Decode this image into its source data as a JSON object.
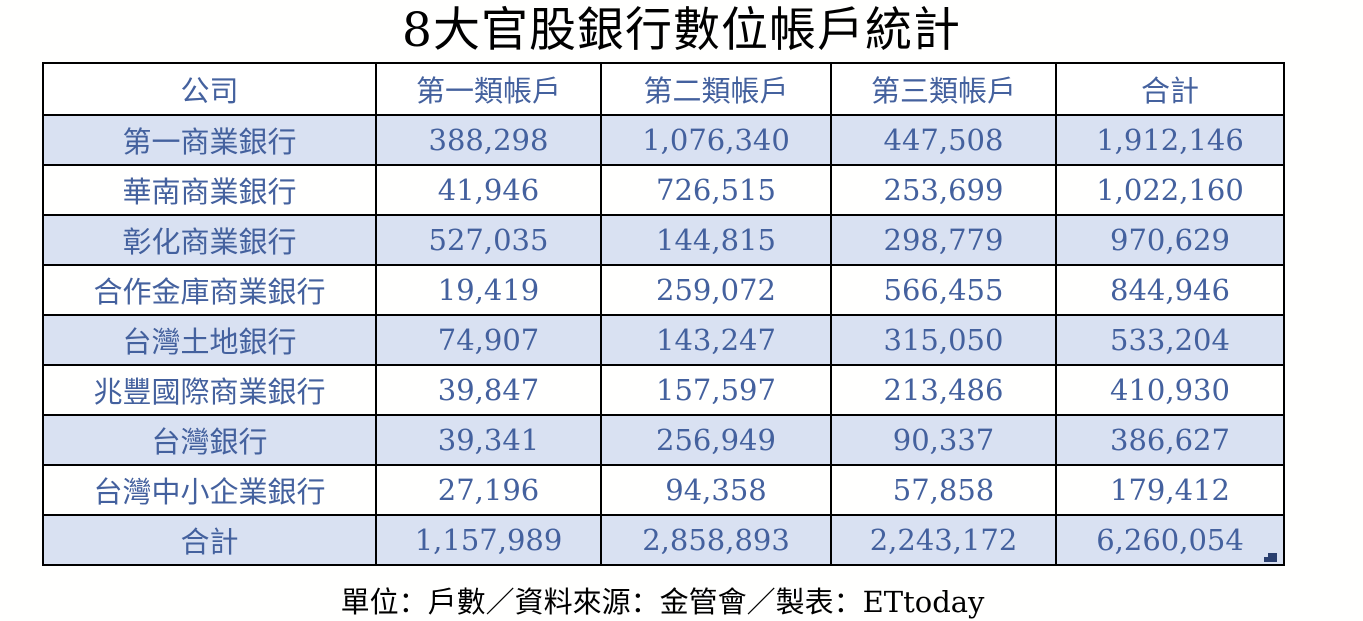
{
  "title": "8大官股銀行數位帳戶統計",
  "footer_note": "單位：戶數／資料來源：金管會／製表：ETtoday",
  "colors": {
    "table_text": "#44619e",
    "band_row_bg": "#d9e1f2",
    "plain_row_bg": "#fffffe",
    "grid_border": "#000000",
    "corner_handle": "#2a3f6f",
    "title_text": "#000000"
  },
  "table": {
    "columns": [
      "公司",
      "第一類帳戶",
      "第二類帳戶",
      "第三類帳戶",
      "合計"
    ],
    "rows": [
      {
        "cells": [
          "第一商業銀行",
          "388,298",
          "1,076,340",
          "447,508",
          "1,912,146"
        ]
      },
      {
        "cells": [
          "華南商業銀行",
          "41,946",
          "726,515",
          "253,699",
          "1,022,160"
        ]
      },
      {
        "cells": [
          "彰化商業銀行",
          "527,035",
          "144,815",
          "298,779",
          "970,629"
        ]
      },
      {
        "cells": [
          "合作金庫商業銀行",
          "19,419",
          "259,072",
          "566,455",
          "844,946"
        ]
      },
      {
        "cells": [
          "台灣土地銀行",
          "74,907",
          "143,247",
          "315,050",
          "533,204"
        ]
      },
      {
        "cells": [
          "兆豐國際商業銀行",
          "39,847",
          "157,597",
          "213,486",
          "410,930"
        ]
      },
      {
        "cells": [
          "台灣銀行",
          "39,341",
          "256,949",
          "90,337",
          "386,627"
        ]
      },
      {
        "cells": [
          "台灣中小企業銀行",
          "27,196",
          "94,358",
          "57,858",
          "179,412"
        ]
      },
      {
        "cells": [
          "合計",
          "1,157,989",
          "2,858,893",
          "2,243,172",
          "6,260,054"
        ]
      }
    ]
  },
  "chart_data": {
    "type": "table",
    "title": "8大官股銀行數位帳戶統計",
    "columns": [
      "公司",
      "第一類帳戶",
      "第二類帳戶",
      "第三類帳戶",
      "合計"
    ],
    "rows": [
      {
        "company": "第一商業銀行",
        "values": [
          388298,
          1076340,
          447508
        ],
        "total": 1912146
      },
      {
        "company": "華南商業銀行",
        "values": [
          41946,
          726515,
          253699
        ],
        "total": 1022160
      },
      {
        "company": "彰化商業銀行",
        "values": [
          527035,
          144815,
          298779
        ],
        "total": 970629
      },
      {
        "company": "合作金庫商業銀行",
        "values": [
          19419,
          259072,
          566455
        ],
        "total": 844946
      },
      {
        "company": "台灣土地銀行",
        "values": [
          74907,
          143247,
          315050
        ],
        "total": 533204
      },
      {
        "company": "兆豐國際商業銀行",
        "values": [
          39847,
          157597,
          213486
        ],
        "total": 410930
      },
      {
        "company": "台灣銀行",
        "values": [
          39341,
          256949,
          90337
        ],
        "total": 386627
      },
      {
        "company": "台灣中小企業銀行",
        "values": [
          27196,
          94358,
          57858
        ],
        "total": 179412
      }
    ],
    "totals_row": {
      "company": "合計",
      "values": [
        1157989,
        2858893,
        2243172
      ],
      "total": 6260054
    },
    "unit_label": "單位：戶數",
    "source_label": "資料來源：金管會",
    "credit_label": "製表：ETtoday"
  }
}
